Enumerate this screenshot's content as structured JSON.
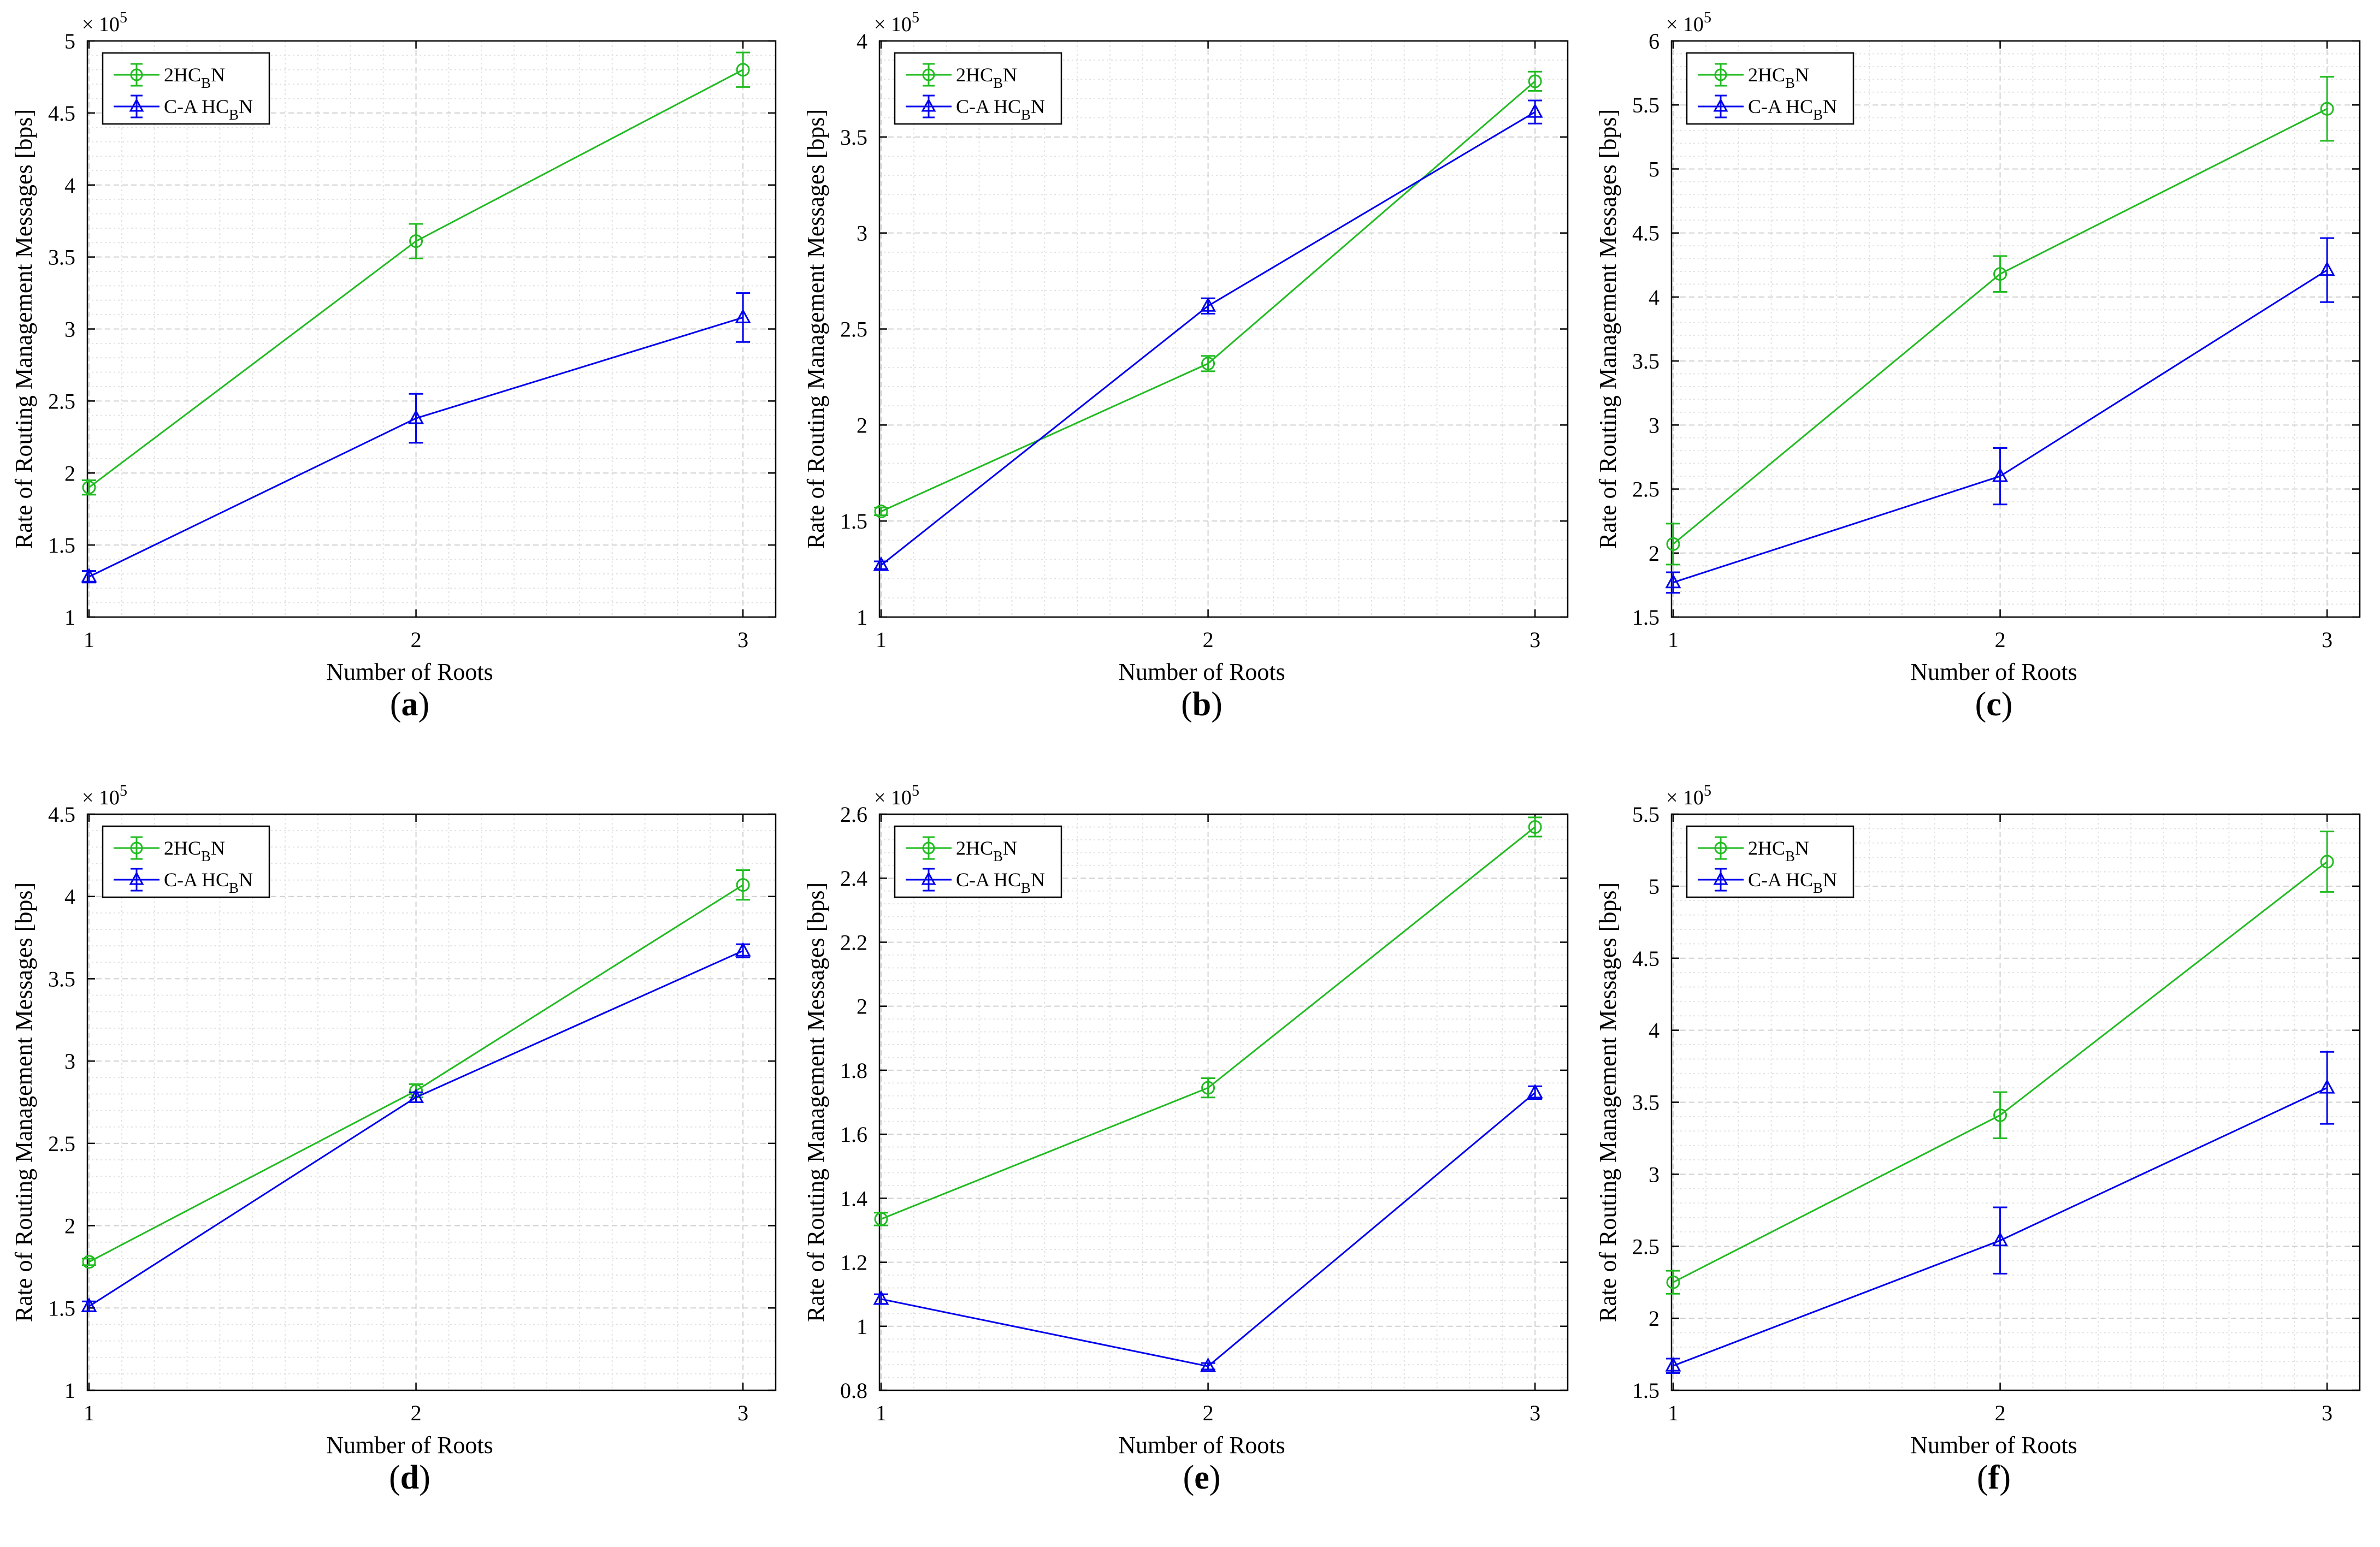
{
  "figure": {
    "colors": {
      "series1": "#22bb22",
      "series2": "#0000ee",
      "grid": "#d0d0d0",
      "axis": "#000000"
    }
  },
  "chart_data": [
    {
      "id": "a",
      "type": "line",
      "caption_letter": "a",
      "xlabel": "Number of Roots",
      "ylabel": "Rate of Routing Management Messages [bps]",
      "exponent_label": "× 10",
      "exponent": "5",
      "x": [
        1,
        2,
        3
      ],
      "xticks": [
        "1",
        "2",
        "3"
      ],
      "ylim": [
        1,
        5
      ],
      "yticks": [
        1,
        1.5,
        2,
        2.5,
        3,
        3.5,
        4,
        4.5,
        5
      ],
      "ytick_labels": [
        "1",
        "1.5",
        "2",
        "2.5",
        "3",
        "3.5",
        "4",
        "4.5",
        "5"
      ],
      "legend_position": "top-left",
      "series": [
        {
          "name": "2HCBN",
          "legend_main": "2HC",
          "legend_sub": "B",
          "legend_end": "N",
          "marker": "circle",
          "color": "#22bb22",
          "values": [
            1.9,
            3.61,
            4.8
          ],
          "err": [
            0.05,
            0.12,
            0.12
          ]
        },
        {
          "name": "C-A HCBN",
          "legend_main": "C-A HC",
          "legend_sub": "B",
          "legend_end": "N",
          "marker": "triangle",
          "color": "#0000ee",
          "values": [
            1.28,
            2.38,
            3.08
          ],
          "err": [
            0.04,
            0.17,
            0.17
          ]
        }
      ]
    },
    {
      "id": "b",
      "type": "line",
      "caption_letter": "b",
      "xlabel": "Number of Roots",
      "ylabel": "Rate of Routing Management Messages [bps]",
      "exponent_label": "× 10",
      "exponent": "5",
      "x": [
        1,
        2,
        3
      ],
      "xticks": [
        "1",
        "2",
        "3"
      ],
      "ylim": [
        1,
        4
      ],
      "yticks": [
        1,
        1.5,
        2,
        2.5,
        3,
        3.5,
        4
      ],
      "ytick_labels": [
        "1",
        "1.5",
        "2",
        "2.5",
        "3",
        "3.5",
        "4"
      ],
      "legend_position": "top-left",
      "series": [
        {
          "name": "2HCBN",
          "legend_main": "2HC",
          "legend_sub": "B",
          "legend_end": "N",
          "marker": "circle",
          "color": "#22bb22",
          "values": [
            1.55,
            2.32,
            3.79
          ],
          "err": [
            0.02,
            0.04,
            0.05
          ]
        },
        {
          "name": "C-A HCBN",
          "legend_main": "C-A HC",
          "legend_sub": "B",
          "legend_end": "N",
          "marker": "triangle",
          "color": "#0000ee",
          "values": [
            1.27,
            2.62,
            3.63
          ],
          "err": [
            0.02,
            0.04,
            0.06
          ]
        }
      ]
    },
    {
      "id": "c",
      "type": "line",
      "caption_letter": "c",
      "xlabel": "Number of Roots",
      "ylabel": "Rate of Routing Management Messages [bps]",
      "exponent_label": "× 10",
      "exponent": "5",
      "x": [
        1,
        2,
        3
      ],
      "xticks": [
        "1",
        "2",
        "3"
      ],
      "ylim": [
        1.5,
        6
      ],
      "yticks": [
        1.5,
        2,
        2.5,
        3,
        3.5,
        4,
        4.5,
        5,
        5.5,
        6
      ],
      "ytick_labels": [
        "1.5",
        "2",
        "2.5",
        "3",
        "3.5",
        "4",
        "4.5",
        "5",
        "5.5",
        "6"
      ],
      "legend_position": "top-left",
      "series": [
        {
          "name": "2HCBN",
          "legend_main": "2HC",
          "legend_sub": "B",
          "legend_end": "N",
          "marker": "circle",
          "color": "#22bb22",
          "values": [
            2.07,
            4.18,
            5.47
          ],
          "err": [
            0.16,
            0.14,
            0.25
          ]
        },
        {
          "name": "C-A HCBN",
          "legend_main": "C-A HC",
          "legend_sub": "B",
          "legend_end": "N",
          "marker": "triangle",
          "color": "#0000ee",
          "values": [
            1.77,
            2.6,
            4.21
          ],
          "err": [
            0.08,
            0.22,
            0.25
          ]
        }
      ]
    },
    {
      "id": "d",
      "type": "line",
      "caption_letter": "d",
      "xlabel": "Number of Roots",
      "ylabel": "Rate of Routing Management Messages [bps]",
      "exponent_label": "× 10",
      "exponent": "5",
      "x": [
        1,
        2,
        3
      ],
      "xticks": [
        "1",
        "2",
        "3"
      ],
      "ylim": [
        1,
        4.5
      ],
      "yticks": [
        1,
        1.5,
        2,
        2.5,
        3,
        3.5,
        4,
        4.5
      ],
      "ytick_labels": [
        "1",
        "1.5",
        "2",
        "2.5",
        "3",
        "3.5",
        "4",
        "4.5"
      ],
      "legend_position": "top-left",
      "series": [
        {
          "name": "2HCBN",
          "legend_main": "2HC",
          "legend_sub": "B",
          "legend_end": "N",
          "marker": "circle",
          "color": "#22bb22",
          "values": [
            1.78,
            2.82,
            4.07
          ],
          "err": [
            0.02,
            0.04,
            0.09
          ]
        },
        {
          "name": "C-A HCBN",
          "legend_main": "C-A HC",
          "legend_sub": "B",
          "legend_end": "N",
          "marker": "triangle",
          "color": "#0000ee",
          "values": [
            1.51,
            2.78,
            3.67
          ],
          "err": [
            0.03,
            0.03,
            0.04
          ]
        }
      ]
    },
    {
      "id": "e",
      "type": "line",
      "caption_letter": "e",
      "xlabel": "Number of Roots",
      "ylabel": "Rate of Routing Management Messages [bps]",
      "exponent_label": "× 10",
      "exponent": "5",
      "x": [
        1,
        2,
        3
      ],
      "xticks": [
        "1",
        "2",
        "3"
      ],
      "ylim": [
        0.8,
        2.6
      ],
      "yticks": [
        0.8,
        1,
        1.2,
        1.4,
        1.6,
        1.8,
        2,
        2.2,
        2.4,
        2.6
      ],
      "ytick_labels": [
        "0.8",
        "1",
        "1.2",
        "1.4",
        "1.6",
        "1.8",
        "2",
        "2.2",
        "2.4",
        "2.6"
      ],
      "legend_position": "top-left",
      "series": [
        {
          "name": "2HCBN",
          "legend_main": "2HC",
          "legend_sub": "B",
          "legend_end": "N",
          "marker": "circle",
          "color": "#22bb22",
          "values": [
            1.335,
            1.745,
            2.56
          ],
          "err": [
            0.02,
            0.03,
            0.03
          ]
        },
        {
          "name": "C-A HCBN",
          "legend_main": "C-A HC",
          "legend_sub": "B",
          "legend_end": "N",
          "marker": "triangle",
          "color": "#0000ee",
          "values": [
            1.085,
            0.875,
            1.73
          ],
          "err": [
            0.015,
            0.01,
            0.02
          ]
        }
      ]
    },
    {
      "id": "f",
      "type": "line",
      "caption_letter": "f",
      "xlabel": "Number of Roots",
      "ylabel": "Rate of Routing Management Messages [bps]",
      "exponent_label": "× 10",
      "exponent": "5",
      "x": [
        1,
        2,
        3
      ],
      "xticks": [
        "1",
        "2",
        "3"
      ],
      "ylim": [
        1.5,
        5.5
      ],
      "yticks": [
        1.5,
        2,
        2.5,
        3,
        3.5,
        4,
        4.5,
        5,
        5.5
      ],
      "ytick_labels": [
        "1.5",
        "2",
        "2.5",
        "3",
        "3.5",
        "4",
        "4.5",
        "5",
        "5.5"
      ],
      "legend_position": "top-left",
      "series": [
        {
          "name": "2HCBN",
          "legend_main": "2HC",
          "legend_sub": "B",
          "legend_end": "N",
          "marker": "circle",
          "color": "#22bb22",
          "values": [
            2.25,
            3.41,
            5.17
          ],
          "err": [
            0.08,
            0.16,
            0.21
          ]
        },
        {
          "name": "C-A HCBN",
          "legend_main": "C-A HC",
          "legend_sub": "B",
          "legend_end": "N",
          "marker": "triangle",
          "color": "#0000ee",
          "values": [
            1.67,
            2.54,
            3.6
          ],
          "err": [
            0.05,
            0.23,
            0.25
          ]
        }
      ]
    }
  ]
}
